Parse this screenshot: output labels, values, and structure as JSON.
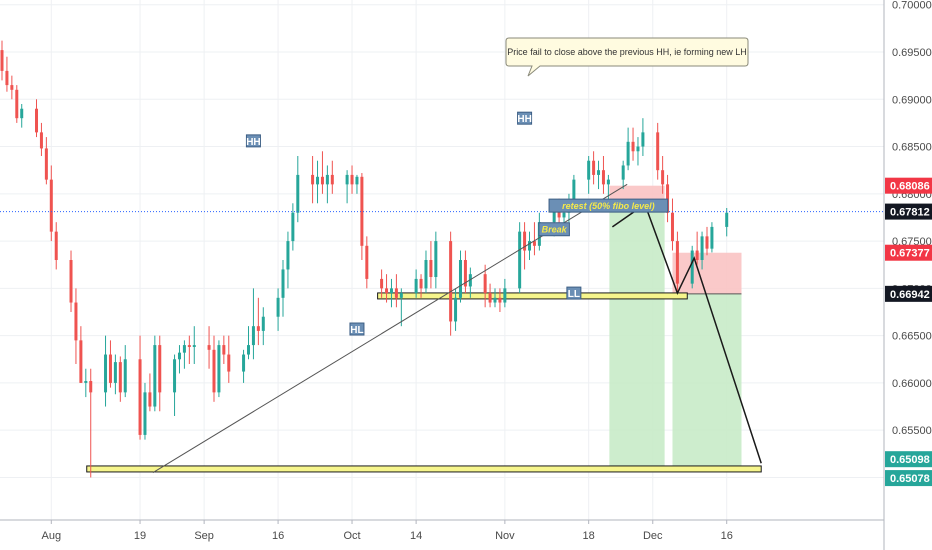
{
  "chart_data": {
    "type": "candlestick",
    "title": "",
    "xlabel": "",
    "ylabel": "",
    "ylim": [
      0.6455,
      0.7005
    ],
    "grid": true,
    "colors": {
      "up": "#26a69a",
      "down": "#ef5350",
      "bullish_bg": "#c8ebc8",
      "bearish_bg": "#f9c3c3",
      "zone": "#f6f58c",
      "trend": "#555555",
      "projection": "#1a1a1a",
      "current_line": "#2962ff"
    },
    "y_ticks": [
      "0.70000",
      "0.69500",
      "0.69000",
      "0.68500",
      "0.68000",
      "0.67500",
      "0.67000",
      "0.66500",
      "0.66000",
      "0.65500",
      "0.65000"
    ],
    "x_ticks": [
      "Aug",
      "19",
      "Sep",
      "16",
      "Oct",
      "14",
      "Nov",
      "18",
      "Dec",
      "16"
    ],
    "price_labels": [
      {
        "text": "0.68086",
        "value": 0.68086,
        "color": "#f23645"
      },
      {
        "text": "0.67812",
        "value": 0.67812,
        "color": "#131722"
      },
      {
        "text": "0.67377",
        "value": 0.67377,
        "color": "#f23645"
      },
      {
        "text": "0.66942",
        "value": 0.66942,
        "color": "#131722"
      },
      {
        "text": "0.65098",
        "value": 0.65098,
        "color": "#26a69a"
      },
      {
        "text": "0.65078",
        "value": 0.65078,
        "color": "#26a69a"
      }
    ],
    "tags": [
      {
        "text": "HH",
        "date": "Sep 11",
        "price": 0.6856
      },
      {
        "text": "HL",
        "date": "Oct 2",
        "price": 0.6657
      },
      {
        "text": "HH",
        "date": "Nov 5",
        "price": 0.688
      },
      {
        "text": "LL",
        "date": "Nov 15",
        "price": 0.6695
      }
    ],
    "annotations": [
      {
        "text": "Break",
        "date": "Nov 11",
        "price": 0.6762
      },
      {
        "text": "retest (50% fibo level)",
        "date": "Nov 22",
        "price": 0.6787
      }
    ],
    "callout": "Price fail to close above the previous HH, ie forming new LH",
    "candles": [
      {
        "date": "Jul 22",
        "o": 0.6952,
        "h": 0.6962,
        "l": 0.692,
        "c": 0.693
      },
      {
        "date": "Jul 23",
        "o": 0.693,
        "h": 0.6945,
        "l": 0.6908,
        "c": 0.6915
      },
      {
        "date": "Jul 24",
        "o": 0.6915,
        "h": 0.6925,
        "l": 0.69,
        "c": 0.691
      },
      {
        "date": "Jul 25",
        "o": 0.691,
        "h": 0.6915,
        "l": 0.6875,
        "c": 0.688
      },
      {
        "date": "Jul 26",
        "o": 0.688,
        "h": 0.6895,
        "l": 0.687,
        "c": 0.689
      },
      {
        "date": "Jul 29",
        "o": 0.689,
        "h": 0.69,
        "l": 0.686,
        "c": 0.6865
      },
      {
        "date": "Jul 30",
        "o": 0.6865,
        "h": 0.6875,
        "l": 0.684,
        "c": 0.6848
      },
      {
        "date": "Jul 31",
        "o": 0.6848,
        "h": 0.686,
        "l": 0.681,
        "c": 0.6815
      },
      {
        "date": "Aug 1",
        "o": 0.6815,
        "h": 0.683,
        "l": 0.675,
        "c": 0.676
      },
      {
        "date": "Aug 2",
        "o": 0.676,
        "h": 0.677,
        "l": 0.672,
        "c": 0.673
      },
      {
        "date": "Aug 5",
        "o": 0.673,
        "h": 0.674,
        "l": 0.6675,
        "c": 0.6685
      },
      {
        "date": "Aug 6",
        "o": 0.6685,
        "h": 0.67,
        "l": 0.662,
        "c": 0.6645
      },
      {
        "date": "Aug 7",
        "o": 0.6645,
        "h": 0.666,
        "l": 0.66,
        "c": 0.66
      },
      {
        "date": "Aug 8",
        "o": 0.66,
        "h": 0.6615,
        "l": 0.6585,
        "c": 0.6602
      },
      {
        "date": "Aug 9",
        "o": 0.6602,
        "h": 0.6615,
        "l": 0.65,
        "c": 0.659
      },
      {
        "date": "Aug 12",
        "o": 0.659,
        "h": 0.665,
        "l": 0.6575,
        "c": 0.663
      },
      {
        "date": "Aug 13",
        "o": 0.663,
        "h": 0.6645,
        "l": 0.6595,
        "c": 0.66
      },
      {
        "date": "Aug 14",
        "o": 0.66,
        "h": 0.663,
        "l": 0.6588,
        "c": 0.6622
      },
      {
        "date": "Aug 15",
        "o": 0.6622,
        "h": 0.6628,
        "l": 0.658,
        "c": 0.659
      },
      {
        "date": "Aug 16",
        "o": 0.659,
        "h": 0.664,
        "l": 0.6585,
        "c": 0.6625
      },
      {
        "date": "Aug 19",
        "o": 0.6625,
        "h": 0.665,
        "l": 0.654,
        "c": 0.6545
      },
      {
        "date": "Aug 20",
        "o": 0.6545,
        "h": 0.66,
        "l": 0.654,
        "c": 0.659
      },
      {
        "date": "Aug 21",
        "o": 0.659,
        "h": 0.661,
        "l": 0.657,
        "c": 0.6575
      },
      {
        "date": "Aug 22",
        "o": 0.6575,
        "h": 0.665,
        "l": 0.657,
        "c": 0.664
      },
      {
        "date": "Aug 23",
        "o": 0.664,
        "h": 0.665,
        "l": 0.657,
        "c": 0.659
      },
      {
        "date": "Aug 26",
        "o": 0.659,
        "h": 0.663,
        "l": 0.6565,
        "c": 0.6625
      },
      {
        "date": "Aug 27",
        "o": 0.6625,
        "h": 0.664,
        "l": 0.661,
        "c": 0.6632
      },
      {
        "date": "Aug 28",
        "o": 0.6632,
        "h": 0.6645,
        "l": 0.6615,
        "c": 0.664
      },
      {
        "date": "Aug 29",
        "o": 0.664,
        "h": 0.665,
        "l": 0.662,
        "c": 0.6638
      },
      {
        "date": "Aug 30",
        "o": 0.6638,
        "h": 0.666,
        "l": 0.662,
        "c": 0.664
      },
      {
        "date": "Sep 2",
        "o": 0.664,
        "h": 0.666,
        "l": 0.6615,
        "c": 0.6635
      },
      {
        "date": "Sep 3",
        "o": 0.6635,
        "h": 0.665,
        "l": 0.658,
        "c": 0.659
      },
      {
        "date": "Sep 4",
        "o": 0.659,
        "h": 0.6645,
        "l": 0.6585,
        "c": 0.664
      },
      {
        "date": "Sep 5",
        "o": 0.664,
        "h": 0.665,
        "l": 0.662,
        "c": 0.663
      },
      {
        "date": "Sep 6",
        "o": 0.663,
        "h": 0.665,
        "l": 0.66,
        "c": 0.6612
      },
      {
        "date": "Sep 9",
        "o": 0.6612,
        "h": 0.6635,
        "l": 0.66,
        "c": 0.663
      },
      {
        "date": "Sep 10",
        "o": 0.663,
        "h": 0.666,
        "l": 0.6625,
        "c": 0.664
      },
      {
        "date": "Sep 11",
        "o": 0.664,
        "h": 0.67,
        "l": 0.6625,
        "c": 0.666
      },
      {
        "date": "Sep 12",
        "o": 0.666,
        "h": 0.669,
        "l": 0.664,
        "c": 0.6655
      },
      {
        "date": "Sep 13",
        "o": 0.6655,
        "h": 0.668,
        "l": 0.664,
        "c": 0.667
      },
      {
        "date": "Sep 16",
        "o": 0.667,
        "h": 0.67,
        "l": 0.6655,
        "c": 0.669
      },
      {
        "date": "Sep 17",
        "o": 0.669,
        "h": 0.673,
        "l": 0.667,
        "c": 0.672
      },
      {
        "date": "Sep 18",
        "o": 0.672,
        "h": 0.676,
        "l": 0.67,
        "c": 0.675
      },
      {
        "date": "Sep 19",
        "o": 0.675,
        "h": 0.679,
        "l": 0.674,
        "c": 0.678
      },
      {
        "date": "Sep 20",
        "o": 0.678,
        "h": 0.684,
        "l": 0.677,
        "c": 0.682
      },
      {
        "date": "Sep 23",
        "o": 0.682,
        "h": 0.684,
        "l": 0.679,
        "c": 0.681
      },
      {
        "date": "Sep 24",
        "o": 0.681,
        "h": 0.6835,
        "l": 0.679,
        "c": 0.6818
      },
      {
        "date": "Sep 25",
        "o": 0.6818,
        "h": 0.6845,
        "l": 0.68,
        "c": 0.681
      },
      {
        "date": "Sep 26",
        "o": 0.681,
        "h": 0.683,
        "l": 0.679,
        "c": 0.682
      },
      {
        "date": "Sep 27",
        "o": 0.682,
        "h": 0.6835,
        "l": 0.68,
        "c": 0.681
      },
      {
        "date": "Sep 30",
        "o": 0.681,
        "h": 0.6825,
        "l": 0.679,
        "c": 0.682
      },
      {
        "date": "Oct 1",
        "o": 0.682,
        "h": 0.683,
        "l": 0.68,
        "c": 0.681
      },
      {
        "date": "Oct 2",
        "o": 0.681,
        "h": 0.682,
        "l": 0.68,
        "c": 0.6818
      },
      {
        "date": "Oct 3",
        "o": 0.6818,
        "h": 0.6822,
        "l": 0.673,
        "c": 0.6745
      },
      {
        "date": "Oct 4",
        "o": 0.6745,
        "h": 0.6755,
        "l": 0.67,
        "c": 0.671
      },
      {
        "date": "Oct 7",
        "o": 0.671,
        "h": 0.672,
        "l": 0.669,
        "c": 0.67
      },
      {
        "date": "Oct 8",
        "o": 0.67,
        "h": 0.6715,
        "l": 0.6685,
        "c": 0.6695
      },
      {
        "date": "Oct 9",
        "o": 0.6695,
        "h": 0.671,
        "l": 0.668,
        "c": 0.67
      },
      {
        "date": "Oct 10",
        "o": 0.67,
        "h": 0.6715,
        "l": 0.668,
        "c": 0.669
      },
      {
        "date": "Oct 11",
        "o": 0.669,
        "h": 0.67,
        "l": 0.666,
        "c": 0.6695
      },
      {
        "date": "Oct 14",
        "o": 0.6695,
        "h": 0.672,
        "l": 0.669,
        "c": 0.671
      },
      {
        "date": "Oct 15",
        "o": 0.671,
        "h": 0.6715,
        "l": 0.669,
        "c": 0.67
      },
      {
        "date": "Oct 16",
        "o": 0.67,
        "h": 0.674,
        "l": 0.6695,
        "c": 0.673
      },
      {
        "date": "Oct 17",
        "o": 0.673,
        "h": 0.675,
        "l": 0.67,
        "c": 0.6712
      },
      {
        "date": "Oct 18",
        "o": 0.6712,
        "h": 0.676,
        "l": 0.67,
        "c": 0.675
      },
      {
        "date": "Oct 21",
        "o": 0.675,
        "h": 0.676,
        "l": 0.665,
        "c": 0.6665
      },
      {
        "date": "Oct 22",
        "o": 0.6665,
        "h": 0.67,
        "l": 0.6655,
        "c": 0.669
      },
      {
        "date": "Oct 23",
        "o": 0.669,
        "h": 0.674,
        "l": 0.6685,
        "c": 0.673
      },
      {
        "date": "Oct 24",
        "o": 0.673,
        "h": 0.674,
        "l": 0.6695,
        "c": 0.6702
      },
      {
        "date": "Oct 25",
        "o": 0.6702,
        "h": 0.6722,
        "l": 0.669,
        "c": 0.6715
      },
      {
        "date": "Oct 28",
        "o": 0.6715,
        "h": 0.6725,
        "l": 0.668,
        "c": 0.6695
      },
      {
        "date": "Oct 29",
        "o": 0.6695,
        "h": 0.6705,
        "l": 0.668,
        "c": 0.6685
      },
      {
        "date": "Oct 30",
        "o": 0.6685,
        "h": 0.67,
        "l": 0.668,
        "c": 0.669
      },
      {
        "date": "Oct 31",
        "o": 0.669,
        "h": 0.67,
        "l": 0.6675,
        "c": 0.6685
      },
      {
        "date": "Nov 1",
        "o": 0.6685,
        "h": 0.671,
        "l": 0.668,
        "c": 0.67
      },
      {
        "date": "Nov 4",
        "o": 0.67,
        "h": 0.677,
        "l": 0.6695,
        "c": 0.676
      },
      {
        "date": "Nov 5",
        "o": 0.676,
        "h": 0.677,
        "l": 0.672,
        "c": 0.674
      },
      {
        "date": "Nov 6",
        "o": 0.674,
        "h": 0.676,
        "l": 0.673,
        "c": 0.675
      },
      {
        "date": "Nov 7",
        "o": 0.675,
        "h": 0.677,
        "l": 0.6735,
        "c": 0.6745
      },
      {
        "date": "Nov 8",
        "o": 0.6745,
        "h": 0.678,
        "l": 0.674,
        "c": 0.677
      },
      {
        "date": "Nov 11",
        "o": 0.677,
        "h": 0.679,
        "l": 0.6755,
        "c": 0.6785
      },
      {
        "date": "Nov 12",
        "o": 0.6785,
        "h": 0.6795,
        "l": 0.6765,
        "c": 0.6775
      },
      {
        "date": "Nov 13",
        "o": 0.6775,
        "h": 0.679,
        "l": 0.6765,
        "c": 0.678
      },
      {
        "date": "Nov 14",
        "o": 0.678,
        "h": 0.68,
        "l": 0.677,
        "c": 0.679
      },
      {
        "date": "Nov 15",
        "o": 0.679,
        "h": 0.682,
        "l": 0.6785,
        "c": 0.6815
      },
      {
        "date": "Nov 18",
        "o": 0.6815,
        "h": 0.684,
        "l": 0.68,
        "c": 0.6835
      },
      {
        "date": "Nov 19",
        "o": 0.6835,
        "h": 0.6845,
        "l": 0.681,
        "c": 0.682
      },
      {
        "date": "Nov 20",
        "o": 0.682,
        "h": 0.6835,
        "l": 0.6805,
        "c": 0.6825
      },
      {
        "date": "Nov 21",
        "o": 0.6825,
        "h": 0.684,
        "l": 0.68,
        "c": 0.681
      },
      {
        "date": "Nov 22",
        "o": 0.681,
        "h": 0.682,
        "l": 0.679,
        "c": 0.6815
      },
      {
        "date": "Nov 25",
        "o": 0.6815,
        "h": 0.6835,
        "l": 0.6805,
        "c": 0.683
      },
      {
        "date": "Nov 26",
        "o": 0.683,
        "h": 0.687,
        "l": 0.6825,
        "c": 0.6855
      },
      {
        "date": "Nov 27",
        "o": 0.6855,
        "h": 0.687,
        "l": 0.6835,
        "c": 0.6845
      },
      {
        "date": "Nov 28",
        "o": 0.6845,
        "h": 0.686,
        "l": 0.683,
        "c": 0.685
      },
      {
        "date": "Nov 29",
        "o": 0.685,
        "h": 0.688,
        "l": 0.684,
        "c": 0.6865
      },
      {
        "date": "Dec 2",
        "o": 0.6865,
        "h": 0.6875,
        "l": 0.6815,
        "c": 0.6825
      },
      {
        "date": "Dec 3",
        "o": 0.6825,
        "h": 0.684,
        "l": 0.68,
        "c": 0.681
      },
      {
        "date": "Dec 4",
        "o": 0.681,
        "h": 0.682,
        "l": 0.677,
        "c": 0.678
      },
      {
        "date": "Dec 5",
        "o": 0.678,
        "h": 0.6795,
        "l": 0.674,
        "c": 0.675
      },
      {
        "date": "Dec 6",
        "o": 0.675,
        "h": 0.676,
        "l": 0.6695,
        "c": 0.6705
      },
      {
        "date": "Dec 9",
        "o": 0.6705,
        "h": 0.6745,
        "l": 0.67,
        "c": 0.674
      },
      {
        "date": "Dec 10",
        "o": 0.674,
        "h": 0.676,
        "l": 0.6725,
        "c": 0.673
      },
      {
        "date": "Dec 11",
        "o": 0.673,
        "h": 0.676,
        "l": 0.672,
        "c": 0.6755
      },
      {
        "date": "Dec 12",
        "o": 0.6755,
        "h": 0.6765,
        "l": 0.6735,
        "c": 0.6742
      },
      {
        "date": "Dec 13",
        "o": 0.6742,
        "h": 0.677,
        "l": 0.6738,
        "c": 0.6765
      },
      {
        "date": "Dec 16",
        "o": 0.6765,
        "h": 0.6785,
        "l": 0.6755,
        "c": 0.678
      }
    ]
  }
}
